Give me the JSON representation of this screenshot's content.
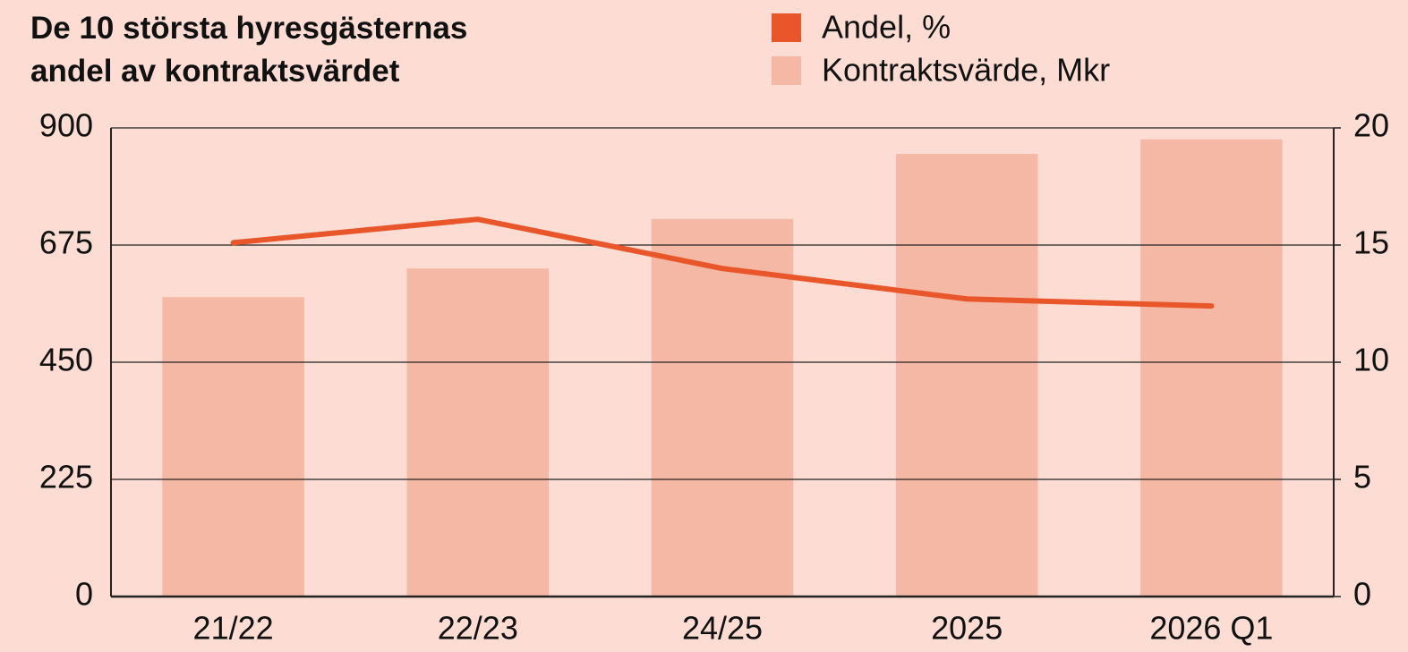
{
  "chart_data": {
    "type": "bar_line",
    "title": "De 10 största hyresgästernas andel av kontraktsvärdet",
    "categories": [
      "21/22",
      "22/23",
      "24/25",
      "2025",
      "2026 Q1"
    ],
    "series": [
      {
        "name": "Andel, %",
        "type": "line",
        "axis": "y2",
        "color": "#e8562a",
        "values": [
          15.1,
          16.1,
          14.0,
          12.7,
          12.4
        ]
      },
      {
        "name": "Kontraktsvärde, Mkr",
        "type": "bar",
        "axis": "y",
        "color": "#f5b8a5",
        "values": [
          575,
          630,
          725,
          850,
          878
        ]
      }
    ],
    "ylim": [
      0,
      900
    ],
    "yticks": [
      0,
      225,
      450,
      675,
      900
    ],
    "y2lim": [
      0,
      20
    ],
    "y2ticks": [
      0,
      5,
      10,
      15,
      20
    ],
    "grid": true,
    "legend": "top"
  }
}
